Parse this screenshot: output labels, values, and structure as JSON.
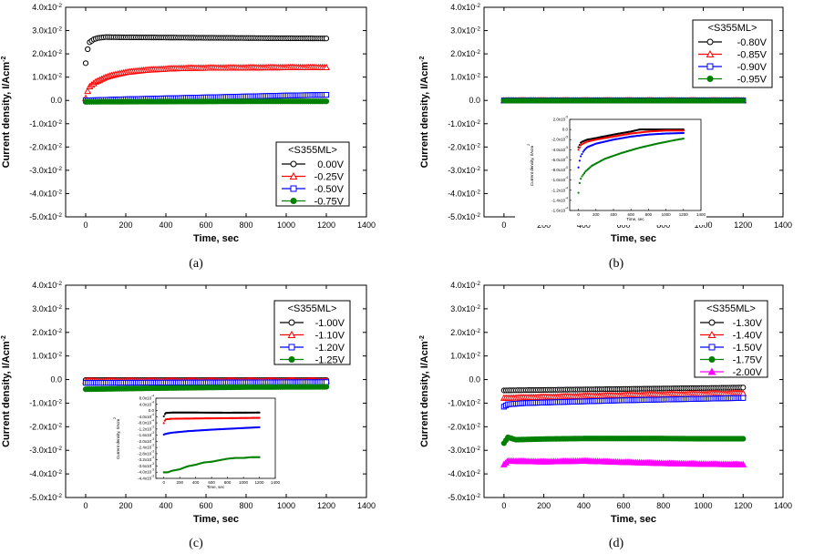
{
  "chart_data": [
    {
      "type": "line",
      "panel": "a",
      "caption": "(a)",
      "xlabel": "Time, sec",
      "ylabel": "Current density, I/Acm-2",
      "xlim": [
        -100,
        1400
      ],
      "ylim": [
        -0.05,
        0.04
      ],
      "xticks": [
        "0",
        "200",
        "400",
        "600",
        "800",
        "1000",
        "1200",
        "1400"
      ],
      "yticks": [
        "4.0x10-2",
        "3.0x10-2",
        "2.0x10-2",
        "1.0x10-2",
        "0.0",
        "-1.0x10-2",
        "-2.0x10-2",
        "-3.0x10-2",
        "-4.0x10-2",
        "-5.0x10-2"
      ],
      "legend": {
        "title": "<S355ML>",
        "position": "lower-right"
      },
      "series": [
        {
          "name": "0.00V",
          "marker": "circle-open",
          "color": "#000000",
          "x": [
            0,
            5,
            10,
            20,
            40,
            60,
            100,
            200,
            400,
            600,
            800,
            1000,
            1200
          ],
          "y": [
            0.016,
            0.019,
            0.022,
            0.025,
            0.0262,
            0.0268,
            0.0272,
            0.0271,
            0.027,
            0.0269,
            0.0268,
            0.0267,
            0.0266
          ]
        },
        {
          "name": "-0.25V",
          "marker": "triangle-open",
          "color": "#ff0000",
          "x": [
            0,
            10,
            20,
            50,
            100,
            150,
            200,
            300,
            400,
            500,
            600,
            800,
            1000,
            1200
          ],
          "y": [
            0.001,
            0.004,
            0.006,
            0.008,
            0.01,
            0.0112,
            0.0121,
            0.0131,
            0.0136,
            0.0139,
            0.014,
            0.0141,
            0.0142,
            0.0142
          ]
        },
        {
          "name": "-0.50V",
          "marker": "square-open",
          "color": "#0000ff",
          "x": [
            0,
            200,
            400,
            600,
            800,
            1000,
            1200
          ],
          "y": [
            0.0,
            0.0005,
            0.0009,
            0.0013,
            0.0017,
            0.0021,
            0.0024
          ]
        },
        {
          "name": "-0.75V",
          "marker": "circle-filled",
          "color": "#008000",
          "x": [
            0,
            400,
            800,
            1200
          ],
          "y": [
            -0.0006,
            -0.0005,
            -0.0004,
            -0.0004
          ]
        }
      ]
    },
    {
      "type": "line",
      "panel": "b",
      "caption": "(b)",
      "xlabel": "Time, sec",
      "ylabel": "Current density, I/Acm-2",
      "xlim": [
        -100,
        1400
      ],
      "ylim": [
        -0.05,
        0.04
      ],
      "xticks": [
        "0",
        "200",
        "400",
        "600",
        "800",
        "1000",
        "1200",
        "1400"
      ],
      "yticks": [
        "4.0x10-2",
        "3.0x10-2",
        "2.0x10-2",
        "1.0x10-2",
        "0.0",
        "-1.0x10-2",
        "-2.0x10-2",
        "-3.0x10-2",
        "-4.0x10-2",
        "-5.0x10-2"
      ],
      "legend": {
        "title": "<S355ML>",
        "position": "upper-right"
      },
      "series": [
        {
          "name": "-0.80V",
          "marker": "circle-open",
          "color": "#000000",
          "x": [
            0,
            1200
          ],
          "y": [
            0.0,
            0.0
          ]
        },
        {
          "name": "-0.85V",
          "marker": "triangle-open",
          "color": "#ff0000",
          "x": [
            0,
            1200
          ],
          "y": [
            0.0,
            0.0
          ]
        },
        {
          "name": "-0.90V",
          "marker": "square-open",
          "color": "#0000ff",
          "x": [
            0,
            1200
          ],
          "y": [
            0.0,
            0.0
          ]
        },
        {
          "name": "-0.95V",
          "marker": "circle-filled",
          "color": "#008000",
          "x": [
            0,
            1200
          ],
          "y": [
            -0.0001,
            -0.0001
          ]
        }
      ],
      "inset": {
        "ylabel": "Current density, I/Acm2",
        "xlabel": "Time, sec",
        "xlim": [
          -100,
          1400
        ],
        "ylim": [
          -0.00016,
          2e-05
        ],
        "xticks": [
          "0",
          "200",
          "400",
          "600",
          "800",
          "1000",
          "1200",
          "1400"
        ],
        "yticks": [
          "2.0x10-5",
          "0.0",
          "-2.0x10-5",
          "-4.0x10-5",
          "-6.0x10-5",
          "-8.0x10-5",
          "-1.0x10-4",
          "-1.2x10-4",
          "-1.4x10-4",
          "-1.6x10-4"
        ],
        "series": [
          {
            "color": "#000000",
            "x": [
              0,
              30,
              100,
              200,
              400,
              600,
              700,
              800,
              1000,
              1200
            ],
            "y": [
              -3.5e-05,
              -2.5e-05,
              -2e-05,
              -1.7e-05,
              -1e-05,
              -4e-06,
              0.0,
              0.0,
              0.0,
              0.0
            ]
          },
          {
            "color": "#ff0000",
            "x": [
              0,
              30,
              100,
              200,
              400,
              600,
              800,
              1000,
              1200
            ],
            "y": [
              -4e-05,
              -3e-05,
              -2.4e-05,
              -2e-05,
              -1.4e-05,
              -8e-06,
              -4e-06,
              -2e-06,
              -2e-06
            ]
          },
          {
            "color": "#0000ff",
            "x": [
              0,
              20,
              60,
              100,
              200,
              400,
              600,
              800,
              1000,
              1200
            ],
            "y": [
              -7.5e-05,
              -5.5e-05,
              -4.2e-05,
              -3.5e-05,
              -2.8e-05,
              -2e-05,
              -1.4e-05,
              -1e-05,
              -8e-06,
              -7e-06
            ]
          },
          {
            "color": "#008000",
            "x": [
              0,
              10,
              30,
              80,
              150,
              300,
              500,
              700,
              900,
              1100,
              1200
            ],
            "y": [
              -0.000125,
              -0.000108,
              -9.5e-05,
              -8.3e-05,
              -7.2e-05,
              -5.8e-05,
              -4.6e-05,
              -3.6e-05,
              -2.8e-05,
              -2.1e-05,
              -1.8e-05
            ]
          }
        ]
      }
    },
    {
      "type": "line",
      "panel": "c",
      "caption": "(c)",
      "xlabel": "Time, sec",
      "ylabel": "Current density, I/Acm-2",
      "xlim": [
        -100,
        1400
      ],
      "ylim": [
        -0.05,
        0.04
      ],
      "xticks": [
        "0",
        "200",
        "400",
        "600",
        "800",
        "1000",
        "1200",
        "1400"
      ],
      "yticks": [
        "4.0x10-2",
        "3.0x10-2",
        "2.0x10-2",
        "1.0x10-2",
        "0.0",
        "-1.0x10-2",
        "-2.0x10-2",
        "-3.0x10-2",
        "-4.0x10-2",
        "-5.0x10-2"
      ],
      "legend": {
        "title": "<S355ML>",
        "position": "upper-right"
      },
      "series": [
        {
          "name": "-1.00V",
          "marker": "circle-open",
          "color": "#000000",
          "x": [
            0,
            1200
          ],
          "y": [
            -0.0002,
            -0.0002
          ]
        },
        {
          "name": "-1.10V",
          "marker": "triangle-open",
          "color": "#ff0000",
          "x": [
            0,
            1200
          ],
          "y": [
            -0.0006,
            -0.0005
          ]
        },
        {
          "name": "-1.20V",
          "marker": "square-open",
          "color": "#0000ff",
          "x": [
            0,
            1200
          ],
          "y": [
            -0.0014,
            -0.0011
          ]
        },
        {
          "name": "-1.25V",
          "marker": "circle-filled",
          "color": "#008000",
          "x": [
            0,
            400,
            800,
            1200
          ],
          "y": [
            -0.0041,
            -0.0036,
            -0.0032,
            -0.0031
          ]
        }
      ],
      "inset": {
        "ylabel": "Current density, I/Acm2",
        "xlabel": "Time, sec",
        "xlim": [
          -100,
          1400
        ],
        "ylim": [
          -0.0045,
          0.0008
        ],
        "xticks": [
          "0",
          "200",
          "400",
          "600",
          "800",
          "1000",
          "1200",
          "1400"
        ],
        "yticks": [
          "8.0x10-4",
          "4.0x10-4",
          "0.0",
          "-4.0x10-4",
          "-8.0x10-4",
          "-1.2x10-3",
          "-1.6x10-3",
          "-2.0x10-3",
          "-2.4x10-3",
          "-2.8x10-3",
          "-3.2x10-3",
          "-3.6x10-3",
          "-4.0x10-3",
          "-4.4x10-3"
        ],
        "series": [
          {
            "color": "#000000",
            "x": [
              0,
              20,
              100,
              400,
              800,
              1200
            ],
            "y": [
              -0.0004,
              -0.00018,
              -0.00015,
              -0.00015,
              -0.00016,
              -0.00015
            ]
          },
          {
            "color": "#ff0000",
            "x": [
              0,
              20,
              100,
              400,
              800,
              1200
            ],
            "y": [
              -0.00085,
              -0.0006,
              -0.00056,
              -0.00054,
              -0.00052,
              -0.0005
            ]
          },
          {
            "color": "#0000ff",
            "x": [
              0,
              30,
              100,
              300,
              600,
              900,
              1200
            ],
            "y": [
              -0.0016,
              -0.00155,
              -0.00148,
              -0.00138,
              -0.00128,
              -0.0012,
              -0.00112
            ]
          },
          {
            "color": "#008000",
            "x": [
              0,
              50,
              100,
              200,
              300,
              400,
              500,
              600,
              700,
              800,
              900,
              1000,
              1100,
              1200
            ],
            "y": [
              -0.0041,
              -0.0041,
              -0.004,
              -0.0039,
              -0.0037,
              -0.0036,
              -0.00345,
              -0.0034,
              -0.0033,
              -0.0032,
              -0.00315,
              -0.00315,
              -0.0031,
              -0.0031
            ]
          }
        ]
      }
    },
    {
      "type": "line",
      "panel": "d",
      "caption": "(d)",
      "xlabel": "Time, sec",
      "ylabel": "Current density, I/Acm-2",
      "xlim": [
        -100,
        1400
      ],
      "ylim": [
        -0.05,
        0.04
      ],
      "xticks": [
        "0",
        "200",
        "400",
        "600",
        "800",
        "1000",
        "1200",
        "1400"
      ],
      "yticks": [
        "4.0x10-2",
        "3.0x10-2",
        "2.0x10-2",
        "1.0x10-2",
        "0.0",
        "-1.0x10-2",
        "-2.0x10-2",
        "-3.0x10-2",
        "-4.0x10-2",
        "-5.0x10-2"
      ],
      "legend": {
        "title": "<S355ML>",
        "position": "upper-right"
      },
      "series": [
        {
          "name": "-1.30V",
          "marker": "circle-open",
          "color": "#000000",
          "x": [
            0,
            300,
            600,
            900,
            1200
          ],
          "y": [
            -0.0046,
            -0.0043,
            -0.004,
            -0.0037,
            -0.0034
          ]
        },
        {
          "name": "-1.40V",
          "marker": "triangle-open",
          "color": "#ff0000",
          "x": [
            0,
            300,
            600,
            900,
            1200
          ],
          "y": [
            -0.0078,
            -0.0072,
            -0.0066,
            -0.0062,
            -0.0058
          ]
        },
        {
          "name": "-1.50V",
          "marker": "square-open",
          "color": "#0000ff",
          "x": [
            0,
            20,
            100,
            300,
            600,
            900,
            1200
          ],
          "y": [
            -0.0115,
            -0.0105,
            -0.01,
            -0.0095,
            -0.0088,
            -0.0083,
            -0.0078
          ]
        },
        {
          "name": "-1.75V",
          "marker": "circle-filled",
          "color": "#008000",
          "x": [
            0,
            20,
            60,
            200,
            400,
            600,
            800,
            1000,
            1200
          ],
          "y": [
            -0.027,
            -0.0245,
            -0.0255,
            -0.0252,
            -0.025,
            -0.025,
            -0.025,
            -0.0251,
            -0.0251
          ]
        },
        {
          "name": "-2.00V",
          "marker": "triangle-filled",
          "color": "#ff00ff",
          "x": [
            0,
            20,
            200,
            400,
            600,
            800,
            1000,
            1200
          ],
          "y": [
            -0.036,
            -0.0345,
            -0.0348,
            -0.0345,
            -0.035,
            -0.0355,
            -0.0358,
            -0.036
          ]
        }
      ]
    }
  ]
}
